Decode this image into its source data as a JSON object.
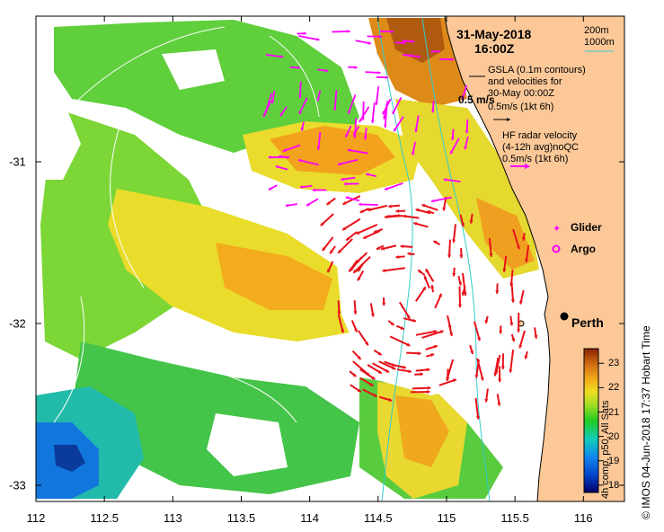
{
  "header": {
    "date": "31-May-2018",
    "time": "16:00Z"
  },
  "depth_legend": {
    "shallow": "200m",
    "deep": "1000m",
    "color": "#33cccc"
  },
  "gsla_legend": {
    "line1": "GSLA (0.1m contours)",
    "line2": "and velocities for",
    "line3": "30-May 00:00Z",
    "scale": "0.5m/s (1kt 6h)",
    "ref_label": "0.5 m/s",
    "color": "#000000"
  },
  "hf_legend": {
    "line1": "HF radar velocity",
    "line2": "(4-12h avg)noQC",
    "scale": "0.5m/s (1kt 6h)",
    "color": "#ff00ff"
  },
  "glider_label": "Glider",
  "argo_label": "Argo",
  "city": {
    "name": "Perth",
    "lon": 115.86,
    "lat": -31.95
  },
  "credit": "© IMOS 04-Jun-2018 17:37 Hobart Time",
  "colorbar": {
    "label": "4h comp, p50, All Sats",
    "ticks": [
      "23",
      "22",
      "21",
      "20",
      "19",
      "18"
    ],
    "min": 17.7,
    "max": 23.6
  },
  "axes": {
    "lon_ticks": [
      "112",
      "112.5",
      "113",
      "113.5",
      "114",
      "114.5",
      "115",
      "115.5",
      "116"
    ],
    "lat_ticks": [
      "-31",
      "-32",
      "-33"
    ],
    "lon_range": [
      112,
      116.3
    ],
    "lat_range": [
      -33.1,
      -30.1
    ]
  },
  "colors": {
    "land": "#fcc898",
    "current_arrow": "#e8111a",
    "contour": "#ffffff",
    "isobath": "#33cccc"
  }
}
